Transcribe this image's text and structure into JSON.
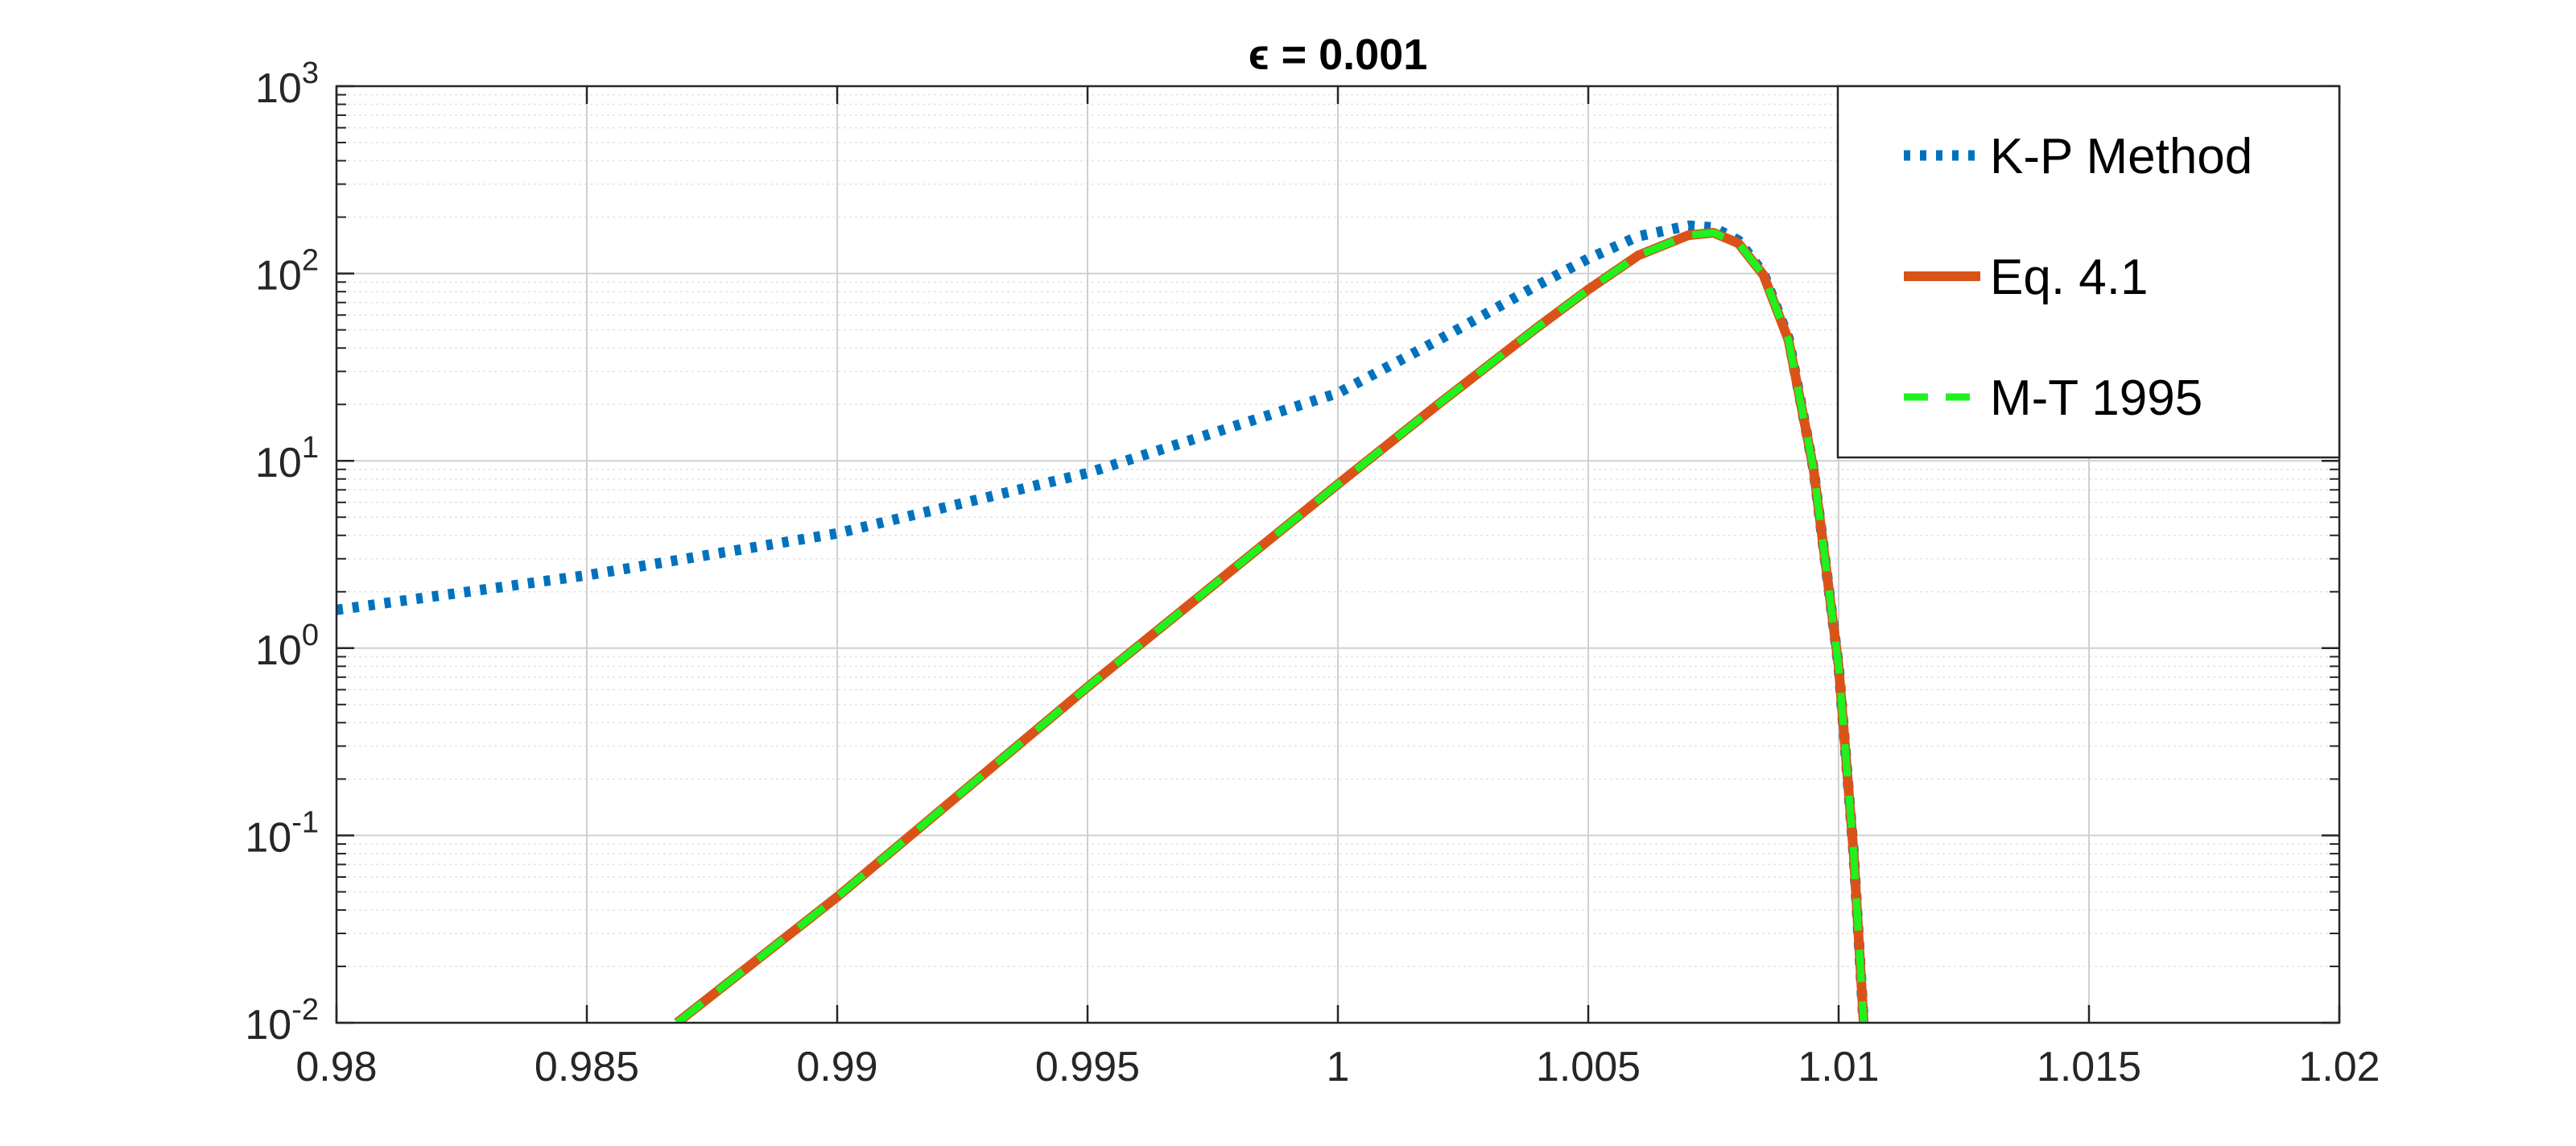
{
  "chart_data": {
    "type": "line",
    "title": "ϵ = 0.001",
    "xlabel": "",
    "ylabel": "",
    "xlim": [
      0.98,
      1.02
    ],
    "ylim": [
      0.01,
      1000
    ],
    "yscale": "log",
    "grid": true,
    "minor_grid": true,
    "legend_position": "top-right",
    "x_ticks": [
      "0.98",
      "0.985",
      "0.99",
      "0.995",
      "1",
      "1.005",
      "1.01",
      "1.015",
      "1.02"
    ],
    "y_ticks": [
      {
        "base": "10",
        "exp": "-2"
      },
      {
        "base": "10",
        "exp": "-1"
      },
      {
        "base": "10",
        "exp": "0"
      },
      {
        "base": "10",
        "exp": "1"
      },
      {
        "base": "10",
        "exp": "2"
      },
      {
        "base": "10",
        "exp": "3"
      }
    ],
    "series": [
      {
        "name": "K-P Method",
        "style": "dotted",
        "color": "#0072BD",
        "x": [
          0.98,
          0.985,
          0.99,
          0.995,
          1.0,
          1.002,
          1.004,
          1.005,
          1.006,
          1.007,
          1.0075,
          1.008,
          1.0085,
          1.009,
          1.0095,
          1.01,
          1.0103,
          1.0105
        ],
        "y": [
          1.6,
          2.45,
          4.1,
          8.6,
          23,
          44,
          87,
          120,
          158,
          180,
          176,
          150,
          100,
          45,
          9,
          0.8,
          0.08,
          0.01
        ]
      },
      {
        "name": "Eq. 4.1",
        "style": "solid",
        "color": "#D95319",
        "x": [
          0.9868,
          0.99,
          0.995,
          1.0,
          1.002,
          1.004,
          1.005,
          1.006,
          1.007,
          1.0075,
          1.008,
          1.0085,
          1.009,
          1.0095,
          1.01,
          1.0103,
          1.0105
        ],
        "y": [
          0.01,
          0.047,
          0.62,
          7.5,
          20,
          52,
          82,
          125,
          160,
          165,
          145,
          98,
          44,
          9,
          0.8,
          0.08,
          0.01
        ]
      },
      {
        "name": "M-T 1995",
        "style": "dashed",
        "color": "#1FF21F",
        "x": [
          0.9868,
          0.99,
          0.995,
          1.0,
          1.002,
          1.004,
          1.005,
          1.006,
          1.007,
          1.0075,
          1.008,
          1.0085,
          1.009,
          1.0095,
          1.01,
          1.0103,
          1.0105
        ],
        "y": [
          0.01,
          0.047,
          0.62,
          7.5,
          20,
          52,
          82,
          125,
          160,
          165,
          145,
          98,
          44,
          9,
          0.8,
          0.08,
          0.01
        ]
      }
    ]
  }
}
